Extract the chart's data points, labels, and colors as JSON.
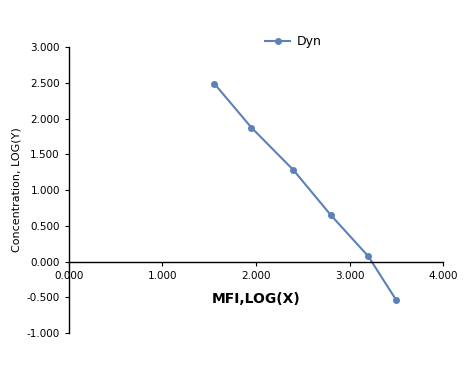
{
  "x": [
    1.553,
    1.95,
    2.4,
    2.8,
    3.2,
    3.5
  ],
  "y": [
    2.49,
    1.875,
    1.28,
    0.65,
    0.075,
    -0.54
  ],
  "line_color": "#5b82b8",
  "marker": "o",
  "marker_size": 4,
  "legend_label": "Dyn",
  "xlabel": "MFI,LOG(X)",
  "ylabel": "Concentration, LOG(Y)",
  "xlim": [
    0.0,
    4.0
  ],
  "ylim": [
    -1.0,
    3.0
  ],
  "xticks": [
    0.0,
    1.0,
    2.0,
    3.0,
    4.0
  ],
  "yticks": [
    -1.0,
    -0.5,
    0.0,
    0.5,
    1.0,
    1.5,
    2.0,
    2.5,
    3.0
  ],
  "xlabel_fontsize": 10,
  "ylabel_fontsize": 8,
  "tick_fontsize": 7.5,
  "legend_fontsize": 9,
  "background_color": "#ffffff"
}
